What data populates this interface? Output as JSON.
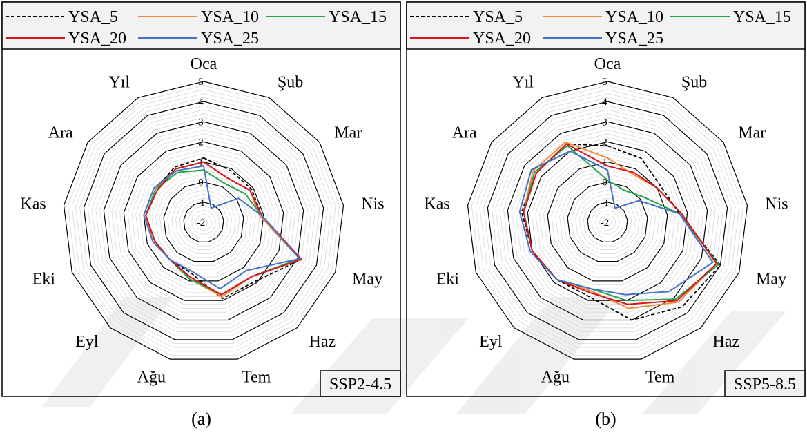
{
  "legend": [
    {
      "name": "YSA_5",
      "color": "#000000",
      "dash": true
    },
    {
      "name": "YSA_10",
      "color": "#F28A3C",
      "dash": false
    },
    {
      "name": "YSA_15",
      "color": "#22A64A",
      "dash": false
    },
    {
      "name": "YSA_20",
      "color": "#D9141C",
      "dash": false
    },
    {
      "name": "YSA_25",
      "color": "#4472C4",
      "dash": false
    }
  ],
  "chart_data": [
    {
      "type": "radar",
      "caption": "(a)",
      "scenario": "SSP2-4.5",
      "categories": [
        "Oca",
        "Şub",
        "Mar",
        "Nis",
        "May",
        "Haz",
        "Tem",
        "Ağu",
        "Eyl",
        "Eki",
        "Kas",
        "Ara",
        "Yıl"
      ],
      "ticks": [
        -2,
        -1,
        0,
        1,
        2,
        3,
        4,
        5
      ],
      "rlim": [
        -2,
        5
      ],
      "series": [
        {
          "name": "YSA_5",
          "values": [
            1.2,
            0.9,
            0.9,
            0.9,
            3.2,
            1.9,
            1.9,
            0.6,
            0.5,
            0.7,
            0.9,
            0.9,
            1.1
          ]
        },
        {
          "name": "YSA_10",
          "values": [
            1.0,
            0.5,
            0.8,
            0.8,
            3.1,
            1.6,
            1.8,
            0.9,
            0.5,
            0.7,
            0.9,
            0.9,
            1.0
          ]
        },
        {
          "name": "YSA_15",
          "values": [
            0.6,
            0.2,
            0.5,
            0.9,
            3.1,
            1.6,
            1.7,
            0.9,
            0.5,
            0.6,
            0.9,
            0.9,
            0.8
          ]
        },
        {
          "name": "YSA_20",
          "values": [
            1.0,
            0.5,
            0.8,
            0.9,
            3.2,
            1.6,
            1.7,
            0.8,
            0.5,
            0.6,
            0.9,
            0.8,
            1.0
          ]
        },
        {
          "name": "YSA_25",
          "values": [
            0.8,
            -1.2,
            0.1,
            0.9,
            3.1,
            1.2,
            1.4,
            0.5,
            0.5,
            0.7,
            1.0,
            1.0,
            0.9
          ]
        }
      ]
    },
    {
      "type": "radar",
      "caption": "(b)",
      "scenario": "SSP5-8.5",
      "categories": [
        "Oca",
        "Şub",
        "Mar",
        "Nis",
        "May",
        "Haz",
        "Tem",
        "Ağu",
        "Eyl",
        "Eki",
        "Kas",
        "Ara",
        "Yıl"
      ],
      "ticks": [
        -2,
        -1,
        0,
        1,
        2,
        3,
        4,
        5
      ],
      "rlim": [
        -2,
        5
      ],
      "series": [
        {
          "name": "YSA_5",
          "values": [
            1.8,
            1.6,
            1.2,
            1.6,
            4.0,
            3.6,
            3.0,
            1.8,
            1.8,
            2.0,
            2.3,
            2.3,
            2.4
          ]
        },
        {
          "name": "YSA_10",
          "values": [
            1.2,
            0.7,
            1.0,
            1.7,
            3.8,
            3.3,
            2.4,
            1.5,
            1.8,
            2.0,
            2.2,
            2.5,
            2.5
          ]
        },
        {
          "name": "YSA_15",
          "values": [
            0.1,
            -0.2,
            0.2,
            1.6,
            3.9,
            3.1,
            2.0,
            1.4,
            1.8,
            2.0,
            2.2,
            2.4,
            2.3
          ]
        },
        {
          "name": "YSA_20",
          "values": [
            0.8,
            0.8,
            1.0,
            1.7,
            3.8,
            3.2,
            2.2,
            1.6,
            1.8,
            2.0,
            2.2,
            2.3,
            2.4
          ]
        },
        {
          "name": "YSA_25",
          "values": [
            0.6,
            -1.2,
            -0.1,
            1.6,
            3.6,
            2.6,
            1.7,
            1.4,
            1.8,
            2.1,
            2.4,
            2.6,
            2.0
          ]
        }
      ]
    }
  ]
}
